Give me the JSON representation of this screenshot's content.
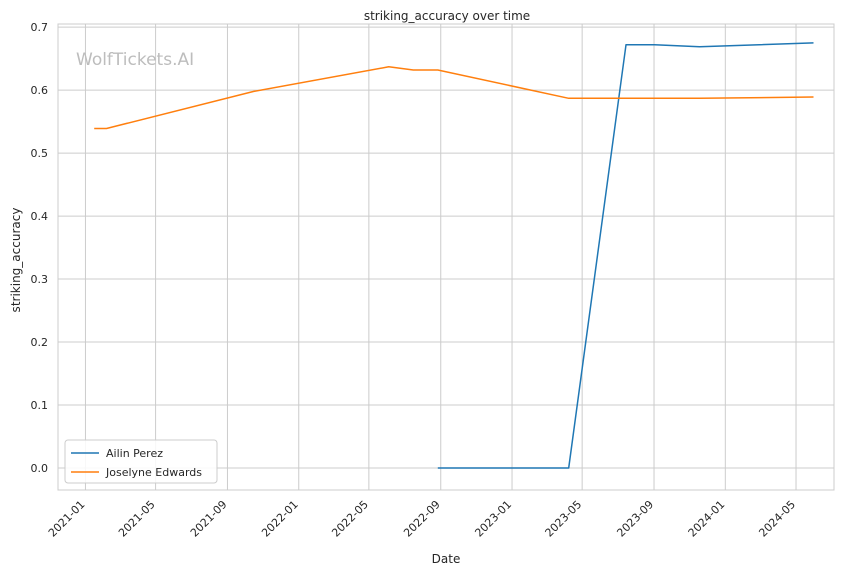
{
  "chart_data": {
    "type": "line",
    "title": "striking_accuracy over time",
    "xlabel": "Date",
    "ylabel": "striking_accuracy",
    "watermark": "WolfTickets.AI",
    "xlim": [
      "2020-11-15",
      "2024-07-05"
    ],
    "ylim": [
      -0.035,
      0.705
    ],
    "x_ticks": [
      "2021-01",
      "2021-05",
      "2021-09",
      "2022-01",
      "2022-05",
      "2022-09",
      "2023-01",
      "2023-05",
      "2023-09",
      "2024-01",
      "2024-05"
    ],
    "y_ticks": [
      0.0,
      0.1,
      0.2,
      0.3,
      0.4,
      0.5,
      0.6,
      0.7
    ],
    "y_tick_labels": [
      "0.0",
      "0.1",
      "0.2",
      "0.3",
      "0.4",
      "0.5",
      "0.6",
      "0.7"
    ],
    "grid": true,
    "legend_position": "lower-left",
    "series": [
      {
        "name": "Ailin Perez",
        "color": "#1f77b4",
        "points": [
          {
            "x": "2022-08-27",
            "y": 0.0
          },
          {
            "x": "2023-04-08",
            "y": 0.0
          },
          {
            "x": "2023-07-15",
            "y": 0.672
          },
          {
            "x": "2023-09-02",
            "y": 0.672
          },
          {
            "x": "2023-11-18",
            "y": 0.669
          },
          {
            "x": "2024-05-31",
            "y": 0.675
          }
        ]
      },
      {
        "name": "Joselyne Edwards",
        "color": "#ff7f0e",
        "points": [
          {
            "x": "2021-01-16",
            "y": 0.539
          },
          {
            "x": "2021-02-06",
            "y": 0.539
          },
          {
            "x": "2021-10-16",
            "y": 0.598
          },
          {
            "x": "2022-06-04",
            "y": 0.637
          },
          {
            "x": "2022-07-16",
            "y": 0.632
          },
          {
            "x": "2022-08-27",
            "y": 0.632
          },
          {
            "x": "2023-04-08",
            "y": 0.587
          },
          {
            "x": "2023-07-15",
            "y": 0.587
          },
          {
            "x": "2023-09-02",
            "y": 0.587
          },
          {
            "x": "2023-11-18",
            "y": 0.587
          },
          {
            "x": "2024-05-31",
            "y": 0.589
          }
        ]
      }
    ]
  }
}
